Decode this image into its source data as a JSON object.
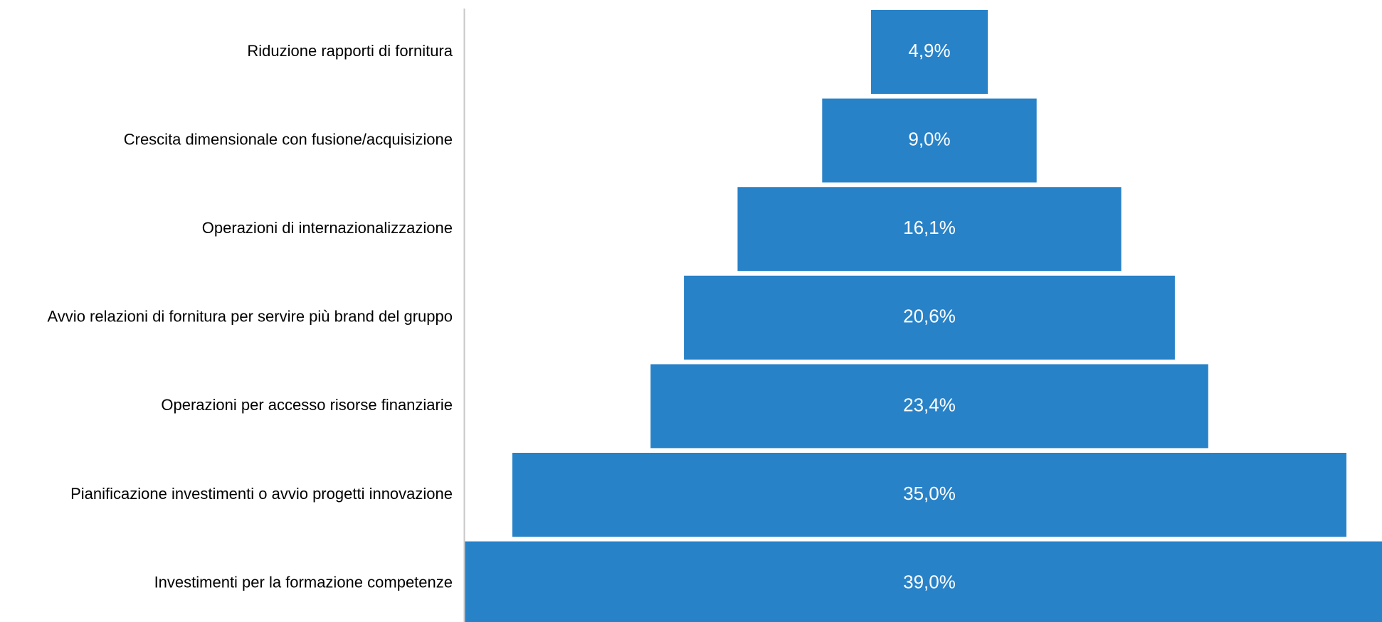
{
  "chart_data": {
    "type": "bar",
    "subtype": "funnel",
    "categories": [
      "Riduzione rapporti di fornitura",
      "Crescita dimensionale con fusione/acquisizione",
      "Operazioni di internazionalizzazione",
      "Avvio relazioni di fornitura per servire più brand del gruppo",
      "Operazioni per accesso risorse finanziarie",
      "Pianificazione investimenti o avvio progetti innovazione",
      "Investimenti per la formazione competenze"
    ],
    "values": [
      4.9,
      9.0,
      16.1,
      20.6,
      23.4,
      35.0,
      39.0
    ],
    "value_labels": [
      "4,9%",
      "9,0%",
      "16,1%",
      "20,6%",
      "23,4%",
      "35,0%",
      "39,0%"
    ],
    "bar_color": "#2882C8",
    "label_color": "#ffffff",
    "axis_color": "#c8c8c8",
    "grid": false,
    "legend": "none",
    "title": "",
    "xlabel": "",
    "ylabel": ""
  }
}
